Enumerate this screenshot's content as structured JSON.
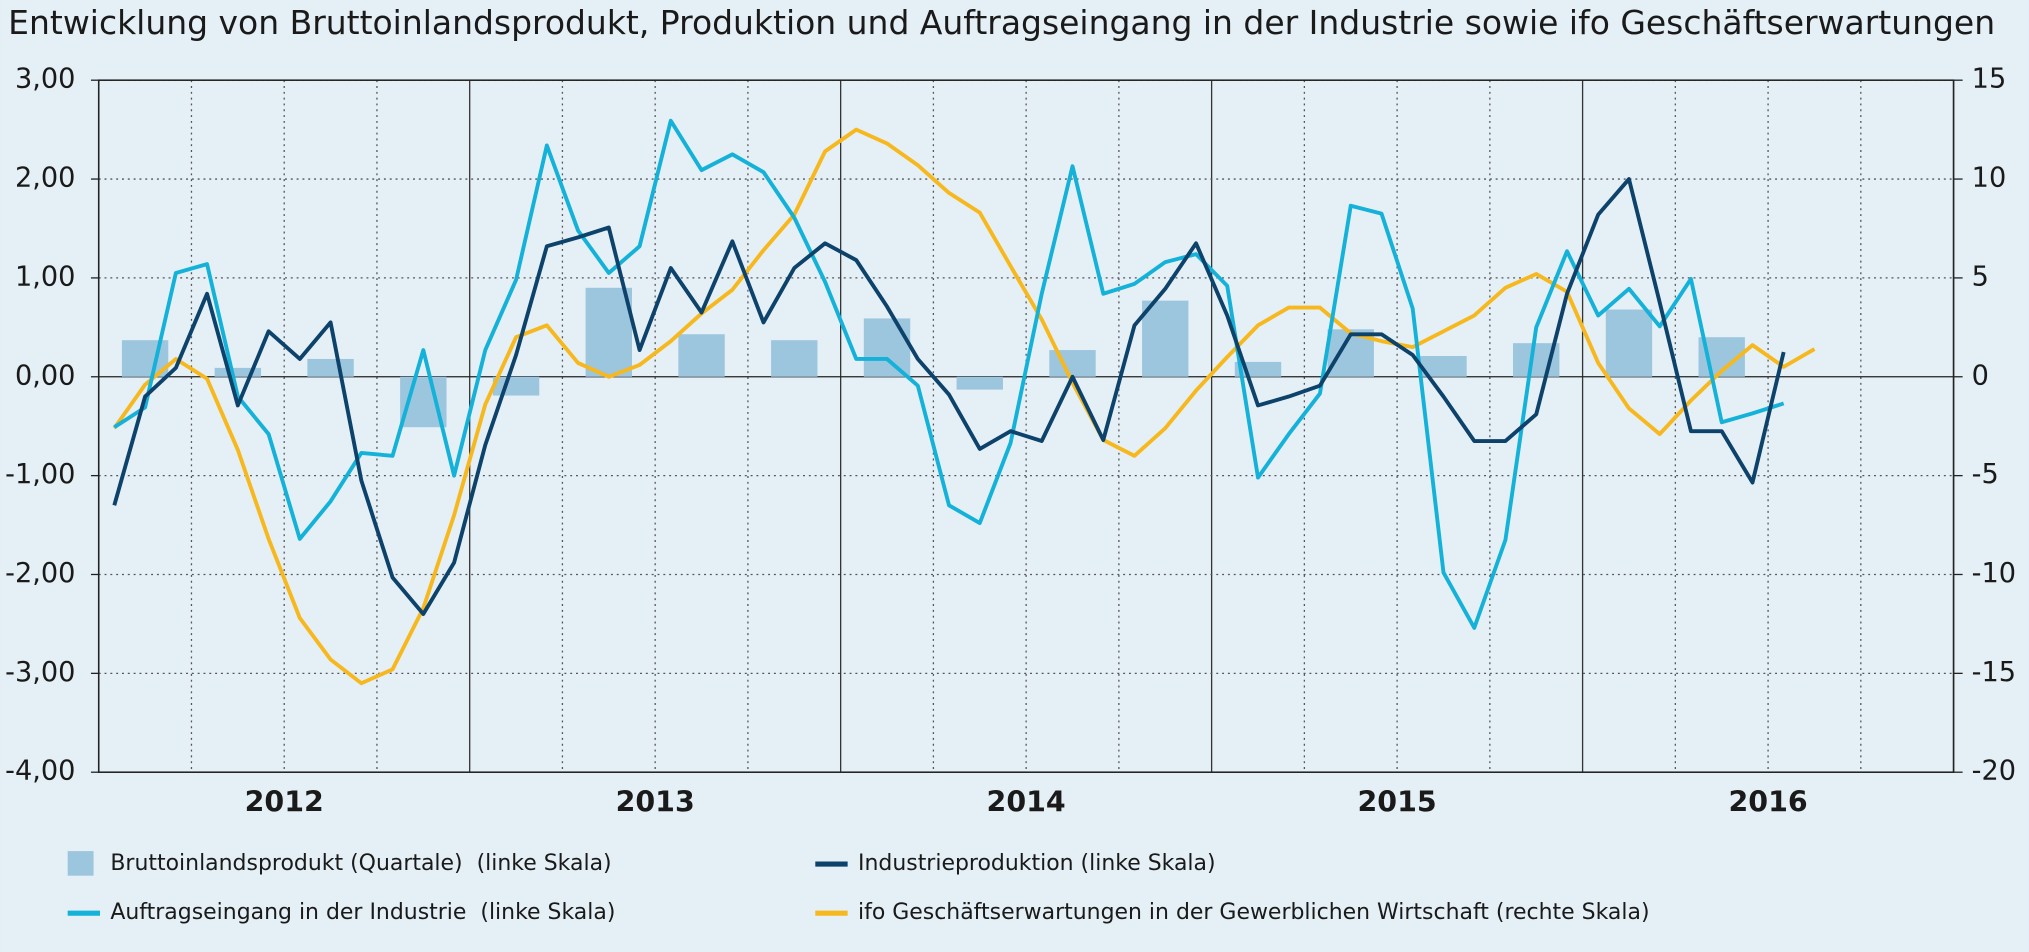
{
  "chart_data": {
    "type": "line",
    "title": "Entwicklung von Bruttoinlandsprodukt, Produktion und Auftragseingang in der Industrie sowie ifo Geschäftserwartungen",
    "categories": [
      "2012",
      "2013",
      "2014",
      "2015",
      "2016"
    ],
    "xlim": [
      2012,
      2017
    ],
    "xticks": [
      2012,
      2012.25,
      2012.5,
      2012.75,
      2013,
      2013.25,
      2013.5,
      2013.75,
      2014,
      2014.25,
      2014.5,
      2014.75,
      2015,
      2015.25,
      2015.5,
      2015.75,
      2016,
      2016.25,
      2016.5,
      2016.75,
      2017
    ],
    "ylim": [
      -4,
      3
    ],
    "yticks": [
      {
        "value": 3,
        "label": "3,00"
      },
      {
        "value": 2,
        "label": "2,00"
      },
      {
        "value": 1,
        "label": "1,00"
      },
      {
        "value": 0,
        "label": "0,00"
      },
      {
        "value": -1,
        "label": "-1,00"
      },
      {
        "value": -2,
        "label": "-2,00"
      },
      {
        "value": -3,
        "label": "-3,00"
      },
      {
        "value": -4,
        "label": "-4,00"
      }
    ],
    "y2lim": [
      -20,
      15
    ],
    "y2ticks": [
      15,
      10,
      5,
      0,
      -5,
      -10,
      -15,
      -20
    ],
    "grid": true,
    "x": [
      2012.042,
      2012.125,
      2012.208,
      2012.292,
      2012.375,
      2012.458,
      2012.542,
      2012.625,
      2012.708,
      2012.792,
      2012.875,
      2012.958,
      2013.042,
      2013.125,
      2013.208,
      2013.292,
      2013.375,
      2013.458,
      2013.542,
      2013.625,
      2013.708,
      2013.792,
      2013.875,
      2013.958,
      2014.042,
      2014.125,
      2014.208,
      2014.292,
      2014.375,
      2014.458,
      2014.542,
      2014.625,
      2014.708,
      2014.792,
      2014.875,
      2014.958,
      2015.042,
      2015.125,
      2015.208,
      2015.292,
      2015.375,
      2015.458,
      2015.542,
      2015.625,
      2015.708,
      2015.792,
      2015.875,
      2015.958,
      2016.042,
      2016.125,
      2016.208,
      2016.292,
      2016.375,
      2016.458,
      2016.542,
      2016.625
    ],
    "series": [
      {
        "name": "Bruttoinlandsprodukt (Quartale)  (linke Skala)",
        "type": "bar",
        "color": "#9cc5de",
        "x": [
          2012.125,
          2012.375,
          2012.625,
          2012.875,
          2013.125,
          2013.375,
          2013.625,
          2013.875,
          2014.125,
          2014.375,
          2014.625,
          2014.875,
          2015.125,
          2015.375,
          2015.625,
          2015.875,
          2016.125,
          2016.375
        ],
        "values": [
          0.37,
          0.09,
          0.18,
          -0.51,
          -0.19,
          0.9,
          0.43,
          0.37,
          0.59,
          -0.13,
          0.27,
          0.77,
          0.15,
          0.48,
          0.21,
          0.34,
          0.68,
          0.4
        ]
      },
      {
        "name": "Industrieproduktion (linke Skala)",
        "type": "line",
        "color": "#0d426b",
        "values": [
          -1.3,
          -0.2,
          0.09,
          0.84,
          -0.29,
          0.46,
          0.18,
          0.55,
          -1.05,
          -2.03,
          -2.4,
          -1.88,
          -0.69,
          0.22,
          1.32,
          1.41,
          1.51,
          0.27,
          1.1,
          0.65,
          1.37,
          0.55,
          1.1,
          1.35,
          1.18,
          0.71,
          0.18,
          -0.18,
          -0.73,
          -0.55,
          -0.65,
          0.0,
          -0.64,
          0.52,
          0.89,
          1.35,
          0.62,
          -0.29,
          -0.2,
          -0.09,
          0.43,
          0.43,
          0.22,
          -0.2,
          -0.65,
          -0.65,
          -0.38,
          0.84,
          1.64,
          2.0,
          0.75,
          -0.55,
          -0.55,
          -1.07,
          0.25,
          null
        ]
      },
      {
        "name": "Auftragseingang in der Industrie  (linke Skala)",
        "type": "line",
        "color": "#14b1d9",
        "values": [
          -0.51,
          -0.31,
          1.05,
          1.14,
          -0.2,
          -0.58,
          -1.64,
          -1.26,
          -0.77,
          -0.8,
          0.27,
          -1.0,
          0.27,
          0.98,
          2.34,
          1.48,
          1.05,
          1.32,
          2.59,
          2.09,
          2.25,
          2.07,
          1.61,
          0.96,
          0.18,
          0.18,
          -0.09,
          -1.3,
          -1.48,
          -0.67,
          0.84,
          2.13,
          0.84,
          0.94,
          1.16,
          1.24,
          0.92,
          -1.02,
          -0.58,
          -0.17,
          1.73,
          1.65,
          0.69,
          -1.98,
          -2.54,
          -1.65,
          0.5,
          1.27,
          0.62,
          0.89,
          0.51,
          0.99,
          -0.46,
          -0.37,
          -0.27,
          null
        ]
      },
      {
        "name": "ifo Geschäftserwartungen in der Gewerblichen Wirtschaft (rechte Skala)",
        "type": "line",
        "axis": "y2",
        "color": "#f7b81e",
        "values": [
          -2.6,
          -0.4,
          0.9,
          -0.1,
          -3.7,
          -8.2,
          -12.2,
          -14.3,
          -15.5,
          -14.8,
          -11.7,
          -7.0,
          -1.4,
          2.0,
          2.6,
          0.7,
          0,
          0.6,
          1.8,
          3.2,
          4.4,
          6.4,
          8.2,
          11.4,
          12.5,
          11.8,
          10.7,
          9.3,
          8.3,
          5.6,
          2.9,
          -0.3,
          -3.2,
          -4.0,
          -2.6,
          -0.7,
          1.0,
          2.6,
          3.5,
          3.5,
          2.2,
          1.8,
          1.5,
          2.3,
          3.1,
          4.5,
          5.2,
          4.3,
          0.7,
          -1.6,
          -2.9,
          -1.2,
          0.3,
          1.6,
          0.5,
          1.4
        ]
      }
    ]
  }
}
